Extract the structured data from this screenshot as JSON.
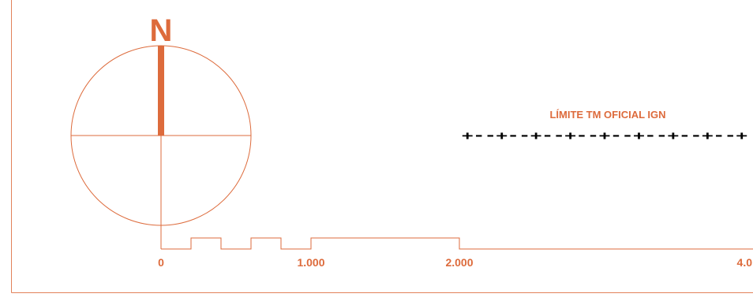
{
  "north_arrow": {
    "letter": "N"
  },
  "scale_bar": {
    "labels": [
      "0",
      "1.000",
      "2.000",
      "4.0"
    ]
  },
  "legend": {
    "boundary_label": "LÍMITE TM OFICIAL IGN",
    "boundary_symbol": "+--+--+--+--+--+--+--+--+"
  },
  "colors": {
    "accent": "#dd6b3c",
    "frame": "#e2815a",
    "ink": "#000000"
  }
}
